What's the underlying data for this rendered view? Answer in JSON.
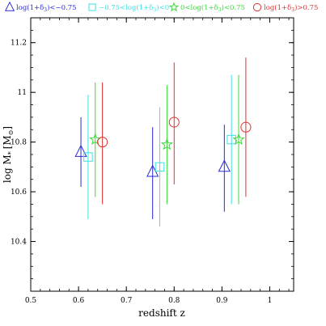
{
  "chart_data": {
    "type": "scatter",
    "xlabel": "redshift z",
    "ylabel": "log M",
    "ylabel_sub": "*",
    "ylabel_unit": "[M",
    "ylabel_unit_sub": "⊙",
    "ylabel_unit_close": "]",
    "xlim": [
      0.5,
      1.05
    ],
    "ylim": [
      10.2,
      11.3
    ],
    "xticks": [
      0.5,
      0.6,
      0.7,
      0.8,
      0.9,
      1
    ],
    "xtick_labels": [
      "0.5",
      "0.6",
      "0.7",
      "0.8",
      "0.9",
      "1"
    ],
    "yticks": [
      10.4,
      10.6,
      10.8,
      11,
      11.2
    ],
    "ytick_labels": [
      "10.4",
      "10.6",
      "10.8",
      "11",
      "11.2"
    ],
    "legend_position": "top",
    "series": [
      {
        "legend": [
          "log(1+δ",
          "3",
          ")<−0.75"
        ],
        "marker": "triangle",
        "color": "#2a2ad8",
        "points": [
          {
            "x": 0.605,
            "y": 10.76,
            "ylo": 10.62,
            "yhi": 10.9
          },
          {
            "x": 0.755,
            "y": 10.68,
            "ylo": 10.49,
            "yhi": 10.86
          },
          {
            "x": 0.905,
            "y": 10.7,
            "ylo": 10.52,
            "yhi": 10.87
          }
        ]
      },
      {
        "legend": [
          "−0.75<log(1+δ",
          "3",
          ")<0"
        ],
        "marker": "square",
        "color": "#3ee0e0",
        "points": [
          {
            "x": 0.62,
            "y": 10.74,
            "ylo": 10.49,
            "yhi": 10.99
          },
          {
            "x": 0.77,
            "y": 10.7,
            "ylo": 10.46,
            "yhi": 10.94
          },
          {
            "x": 0.92,
            "y": 10.81,
            "ylo": 10.55,
            "yhi": 11.07
          }
        ]
      },
      {
        "legend": [
          "0<log(1+δ",
          "3",
          ")<0.75"
        ],
        "marker": "star",
        "color": "#3ad83a",
        "points": [
          {
            "x": 0.635,
            "y": 10.81,
            "ylo": 10.58,
            "yhi": 11.04
          },
          {
            "x": 0.785,
            "y": 10.79,
            "ylo": 10.55,
            "yhi": 11.03
          },
          {
            "x": 0.935,
            "y": 10.81,
            "ylo": 10.55,
            "yhi": 11.07
          }
        ]
      },
      {
        "legend": [
          "log(1+δ",
          "3",
          ")>0.75"
        ],
        "marker": "circle",
        "color": "#e03030",
        "points": [
          {
            "x": 0.65,
            "y": 10.8,
            "ylo": 10.55,
            "yhi": 11.04
          },
          {
            "x": 0.8,
            "y": 10.88,
            "ylo": 10.63,
            "yhi": 11.12
          },
          {
            "x": 0.95,
            "y": 10.86,
            "ylo": 10.58,
            "yhi": 11.14
          }
        ]
      }
    ]
  }
}
